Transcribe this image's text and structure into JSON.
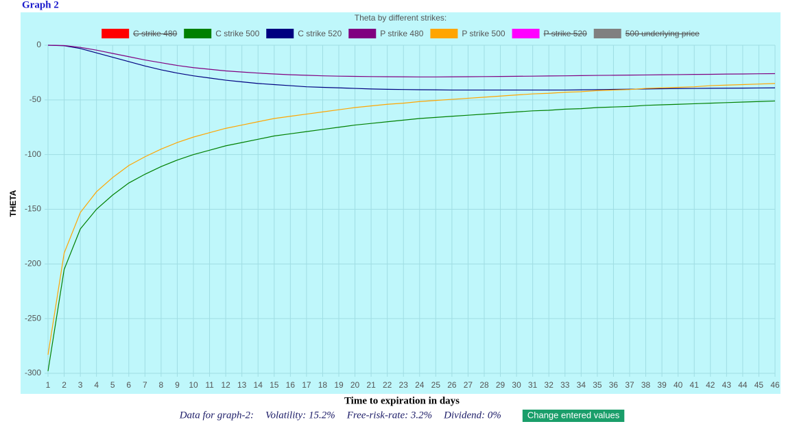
{
  "page": {
    "heading": "Graph 2",
    "footer": [
      "Data for graph-2:",
      "Volatility: 15.2%",
      "Free-risk-rate: 3.2%",
      "Dividend: 0%"
    ],
    "button": "Change entered values"
  },
  "chart_data": {
    "type": "line",
    "title": "Theta by different strikes:",
    "x_label": "Time to expiration in days",
    "y_label": "THETA",
    "x": [
      1,
      2,
      3,
      4,
      5,
      6,
      7,
      8,
      9,
      10,
      11,
      12,
      13,
      14,
      15,
      16,
      17,
      18,
      19,
      20,
      21,
      22,
      23,
      24,
      25,
      26,
      27,
      28,
      29,
      30,
      31,
      32,
      33,
      34,
      35,
      36,
      37,
      38,
      39,
      40,
      41,
      42,
      43,
      44,
      45,
      46
    ],
    "xlim": [
      1,
      46
    ],
    "xticks": [
      1,
      2,
      3,
      4,
      5,
      6,
      7,
      8,
      9,
      10,
      11,
      12,
      13,
      14,
      15,
      16,
      17,
      18,
      19,
      20,
      21,
      22,
      23,
      24,
      25,
      26,
      27,
      28,
      29,
      30,
      31,
      32,
      33,
      34,
      35,
      36,
      37,
      38,
      39,
      40,
      41,
      42,
      43,
      44,
      45,
      46
    ],
    "ylim": [
      -300,
      0
    ],
    "yticks": [
      0,
      -50,
      -100,
      -150,
      -200,
      -250,
      -300
    ],
    "grid": true,
    "series": [
      {
        "name": "C strike 480",
        "color": "#ff0000",
        "hidden": true
      },
      {
        "name": "C strike 500",
        "color": "#008000",
        "values": [
          -298,
          -205,
          -168,
          -150,
          -137,
          -126,
          -118,
          -111,
          -105,
          -100,
          -96,
          -92,
          -89,
          -86,
          -83,
          -81,
          -79,
          -77,
          -75,
          -73,
          -71.5,
          -70,
          -68.5,
          -67,
          -66,
          -65,
          -64,
          -63,
          -62,
          -61,
          -60,
          -59.5,
          -58.5,
          -58,
          -57,
          -56.5,
          -56,
          -55,
          -54.5,
          -54,
          -53.5,
          -53,
          -52.5,
          -52,
          -51.5,
          -51
        ]
      },
      {
        "name": "C strike 520",
        "color": "#000080",
        "values": [
          0,
          -0.5,
          -3,
          -7,
          -11,
          -15,
          -19,
          -22.5,
          -25.5,
          -28,
          -30,
          -32,
          -33.5,
          -35,
          -36,
          -37,
          -38,
          -38.5,
          -39,
          -39.5,
          -40,
          -40.3,
          -40.5,
          -40.7,
          -40.8,
          -41,
          -41,
          -41,
          -41,
          -41,
          -41,
          -41,
          -41,
          -40.8,
          -40.6,
          -40.4,
          -40.2,
          -40,
          -39.8,
          -39.6,
          -39.5,
          -39.4,
          -39.3,
          -39.2,
          -39.1,
          -39
        ]
      },
      {
        "name": "P strike 480",
        "color": "#800080",
        "values": [
          0,
          -0.3,
          -2,
          -4.5,
          -7.5,
          -10.5,
          -13.5,
          -16,
          -18.5,
          -20.5,
          -22,
          -23.5,
          -24.5,
          -25.5,
          -26.3,
          -27,
          -27.5,
          -28,
          -28.3,
          -28.5,
          -28.7,
          -28.8,
          -28.9,
          -29,
          -29,
          -28.9,
          -28.8,
          -28.7,
          -28.6,
          -28.4,
          -28.3,
          -28.1,
          -28,
          -27.8,
          -27.6,
          -27.5,
          -27.3,
          -27.2,
          -27,
          -26.9,
          -26.7,
          -26.6,
          -26.4,
          -26.3,
          -26.1,
          -26
        ]
      },
      {
        "name": "P strike 500",
        "color": "#ffa500",
        "values": [
          -283,
          -190,
          -153,
          -134,
          -121,
          -110,
          -102,
          -95,
          -89,
          -84,
          -80,
          -76,
          -73,
          -70,
          -67,
          -65,
          -63,
          -61,
          -59,
          -57,
          -55.5,
          -54,
          -53,
          -51.5,
          -50.5,
          -49.5,
          -48.5,
          -47.5,
          -46.5,
          -45.5,
          -44.5,
          -44,
          -43,
          -42.5,
          -41.5,
          -41,
          -40.5,
          -39.5,
          -39,
          -38.5,
          -38,
          -37,
          -36.5,
          -36,
          -35.5,
          -35
        ]
      },
      {
        "name": "P strike 520",
        "color": "#ff00ff",
        "hidden": true
      },
      {
        "name": "500 underlying price",
        "color": "#808080",
        "hidden": true
      }
    ]
  }
}
